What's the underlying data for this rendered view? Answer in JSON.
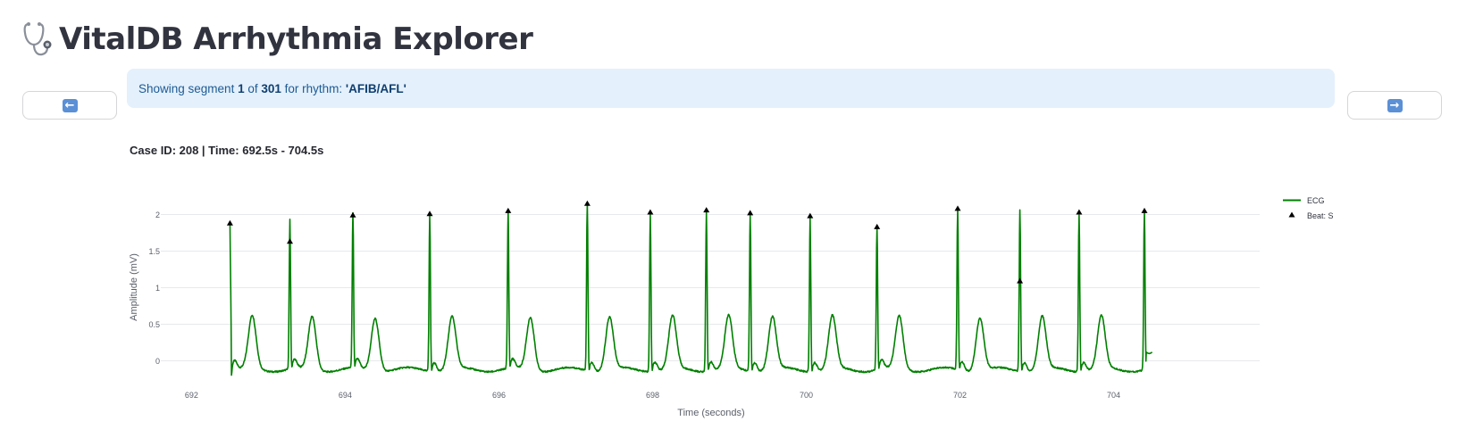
{
  "app": {
    "title": "VitalDB Arrhythmia Explorer",
    "logo_icon": "stethoscope-icon"
  },
  "navigation": {
    "prev_icon": "left-arrow-icon",
    "next_icon": "right-arrow-icon"
  },
  "info": {
    "prefix": "Showing segment ",
    "segment": "1",
    "of_text": " of ",
    "total": "301",
    "rhythm_text": " for rhythm: ",
    "rhythm": "'AFIB/AFL'"
  },
  "chart_header": "Case ID: 208 | Time: 692.5s - 704.5s",
  "colors": {
    "ecg": "#008000",
    "beat_marker": "#000000",
    "info_background": "#e4f0fc",
    "info_text": "#1d5b94"
  },
  "chart_data": {
    "type": "line",
    "xlabel": "Time (seconds)",
    "ylabel": "Amplitude (mV)",
    "xlim": [
      691.6,
      705.9
    ],
    "ylim": [
      -0.25,
      2.25
    ],
    "x_ticks": [
      692,
      694,
      696,
      698,
      700,
      702,
      704
    ],
    "y_ticks": [
      0,
      0.5,
      1,
      1.5,
      2
    ],
    "y_tick_labels": [
      "0",
      "0.5",
      "1",
      "1.5",
      "2"
    ],
    "grid": "horizontal",
    "legend_position": "top-right",
    "segment": [
      692.5,
      704.5
    ],
    "series": [
      {
        "name": "ECG",
        "kind": "line",
        "r_peaks": [
          {
            "t": 692.5,
            "amp": 1.9
          },
          {
            "t": 693.28,
            "amp": 1.93
          },
          {
            "t": 694.1,
            "amp": 2.0
          },
          {
            "t": 695.1,
            "amp": 2.02
          },
          {
            "t": 696.12,
            "amp": 2.06
          },
          {
            "t": 697.15,
            "amp": 2.17
          },
          {
            "t": 697.97,
            "amp": 2.04
          },
          {
            "t": 698.7,
            "amp": 2.07
          },
          {
            "t": 699.27,
            "amp": 2.03
          },
          {
            "t": 700.05,
            "amp": 1.99
          },
          {
            "t": 700.92,
            "amp": 1.84
          },
          {
            "t": 701.97,
            "amp": 2.09
          },
          {
            "t": 702.78,
            "amp": 2.1
          },
          {
            "t": 703.55,
            "amp": 2.04
          },
          {
            "t": 704.4,
            "amp": 2.06
          }
        ]
      },
      {
        "name": "Beat: S",
        "kind": "markers",
        "points": [
          {
            "x": 692.5,
            "y": 1.88
          },
          {
            "x": 693.28,
            "y": 1.63
          },
          {
            "x": 694.1,
            "y": 1.99
          },
          {
            "x": 695.1,
            "y": 2.01
          },
          {
            "x": 696.12,
            "y": 2.05
          },
          {
            "x": 697.15,
            "y": 2.15
          },
          {
            "x": 697.97,
            "y": 2.03
          },
          {
            "x": 698.7,
            "y": 2.06
          },
          {
            "x": 699.27,
            "y": 2.02
          },
          {
            "x": 700.05,
            "y": 1.98
          },
          {
            "x": 700.92,
            "y": 1.83
          },
          {
            "x": 701.97,
            "y": 2.08
          },
          {
            "x": 702.78,
            "y": 1.09
          },
          {
            "x": 703.55,
            "y": 2.03
          },
          {
            "x": 704.4,
            "y": 2.05
          }
        ]
      }
    ]
  }
}
